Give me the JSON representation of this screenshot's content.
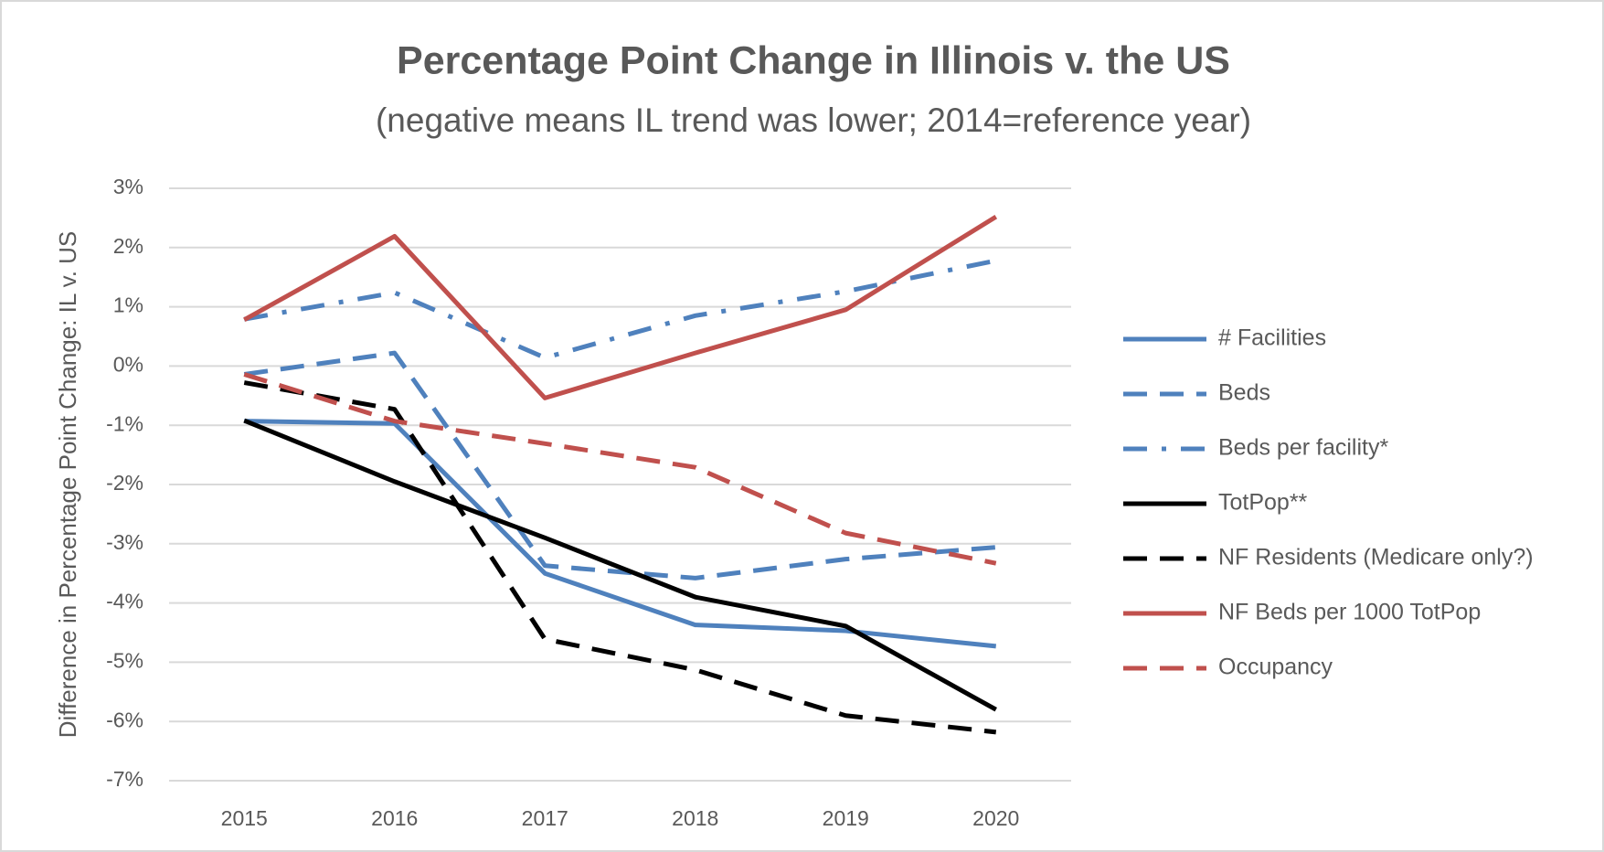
{
  "chart_data": {
    "type": "line",
    "title": "Percentage Point Change in Illinois  v. the US",
    "subtitle": "(negative means IL trend was lower; 2014=reference year)",
    "y_label": "Difference in Percentage Point Change: IL v. US",
    "categories": [
      "2015",
      "2016",
      "2017",
      "2018",
      "2019",
      "2020"
    ],
    "series": [
      {
        "name": "# Facilities",
        "color": "#4f81bd",
        "dash": "solid",
        "values": [
          -0.93,
          -0.97,
          -3.5,
          -4.37,
          -4.47,
          -4.73
        ]
      },
      {
        "name": "Beds",
        "color": "#4f81bd",
        "dash": "dashed",
        "values": [
          -0.14,
          0.22,
          -3.37,
          -3.58,
          -3.26,
          -3.06
        ]
      },
      {
        "name": "Beds per facility*",
        "color": "#4f81bd",
        "dash": "dashdot",
        "values": [
          0.79,
          1.24,
          0.14,
          0.85,
          1.26,
          1.78
        ]
      },
      {
        "name": "TotPop**",
        "color": "#000000",
        "dash": "solid",
        "values": [
          -0.92,
          -1.95,
          -2.9,
          -3.9,
          -4.39,
          -5.8
        ]
      },
      {
        "name": "NF Residents (Medicare only?)",
        "color": "#000000",
        "dash": "dashed",
        "values": [
          -0.28,
          -0.73,
          -4.61,
          -5.13,
          -5.9,
          -6.18
        ]
      },
      {
        "name": "NF Beds per 1000 TotPop",
        "color": "#c0504d",
        "dash": "solid",
        "values": [
          0.78,
          2.19,
          -0.54,
          0.22,
          0.95,
          2.52
        ]
      },
      {
        "name": "Occupancy",
        "color": "#c0504d",
        "dash": "dashed",
        "values": [
          -0.14,
          -0.93,
          -1.31,
          -1.71,
          -2.82,
          -3.33
        ]
      }
    ],
    "ylim": [
      -7,
      3
    ],
    "yticks": [
      {
        "value": -7,
        "label": "-7%"
      },
      {
        "value": -6,
        "label": "-6%"
      },
      {
        "value": -5,
        "label": "-5%"
      },
      {
        "value": -4,
        "label": "-4%"
      },
      {
        "value": -3,
        "label": "-3%"
      },
      {
        "value": -2,
        "label": "-2%"
      },
      {
        "value": -1,
        "label": "-1%"
      },
      {
        "value": 0,
        "label": "0%"
      },
      {
        "value": 1,
        "label": "1%"
      },
      {
        "value": 2,
        "label": "2%"
      },
      {
        "value": 3,
        "label": "3%"
      }
    ],
    "grid": true,
    "legend": "right"
  }
}
